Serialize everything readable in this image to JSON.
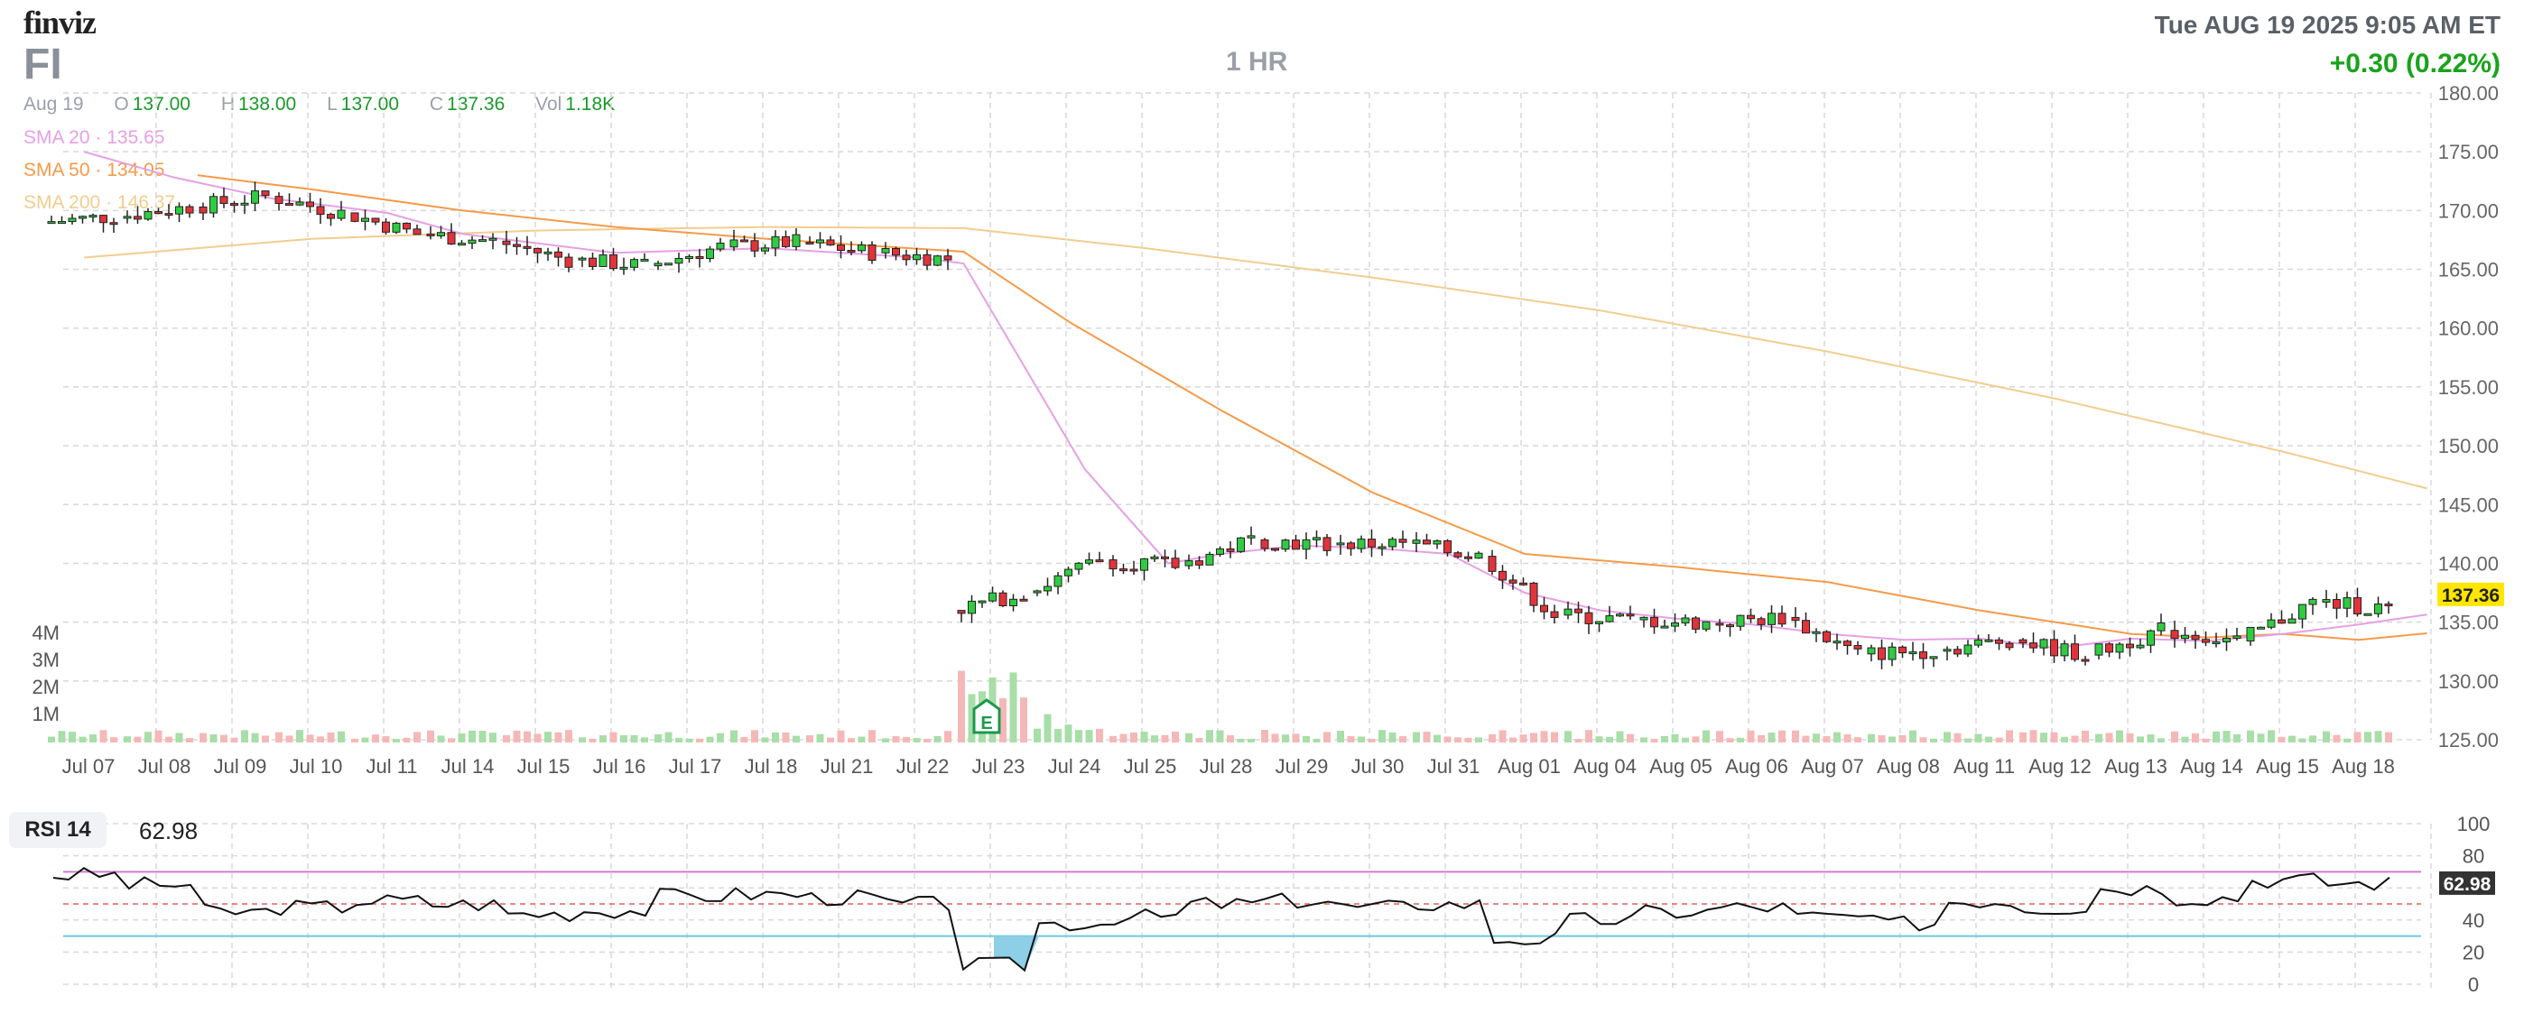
{
  "header": {
    "logo": "finviz",
    "ticker": "FI",
    "timeframe": "1 HR",
    "datetime": "Tue AUG 19 2025 9:05 AM ET",
    "change": "+0.30 (0.22%)"
  },
  "ohlc": {
    "date": "Aug 19",
    "o_label": "O",
    "o": "137.00",
    "h_label": "H",
    "h": "138.00",
    "l_label": "L",
    "l": "137.00",
    "c_label": "C",
    "c": "137.36",
    "vol_label": "Vol",
    "vol": "1.18K"
  },
  "indicators": {
    "sma20": {
      "label": "SMA 20",
      "value": "135.65",
      "color": "#e6a0e6"
    },
    "sma50": {
      "label": "SMA 50",
      "value": "134.05",
      "color": "#f59a4a"
    },
    "sma200": {
      "label": "SMA 200",
      "value": "146.37",
      "color": "#f2cd8f"
    }
  },
  "earnings_marker": {
    "label": "E",
    "date": "Jul 23"
  },
  "rsi": {
    "label": "RSI 14",
    "value": "62.98"
  },
  "colors": {
    "up": "#2ecc40",
    "down": "#e0343a",
    "vol_up": "#a8dea8",
    "vol_down": "#f5b8b8",
    "last_price_bg": "#ffe600",
    "rsi_line": "#111111",
    "rsi_overbought": "#d27ad2",
    "rsi_oversold": "#6cc8e0",
    "rsi_fill": "#8ccfe6",
    "grid": "#d8d8d8"
  },
  "chart_data": {
    "type": "candlestick",
    "x_labels": [
      "Jul 07",
      "Jul 08",
      "Jul 09",
      "Jul 10",
      "Jul 11",
      "Jul 14",
      "Jul 15",
      "Jul 16",
      "Jul 17",
      "Jul 18",
      "Jul 21",
      "Jul 22",
      "Jul 23",
      "Jul 24",
      "Jul 25",
      "Jul 28",
      "Jul 29",
      "Jul 30",
      "Jul 31",
      "Aug 01",
      "Aug 04",
      "Aug 05",
      "Aug 06",
      "Aug 07",
      "Aug 08",
      "Aug 11",
      "Aug 12",
      "Aug 13",
      "Aug 14",
      "Aug 15",
      "Aug 18"
    ],
    "price_ticks": [
      "180.00",
      "175.00",
      "170.00",
      "165.00",
      "160.00",
      "155.00",
      "150.00",
      "145.00",
      "140.00",
      "135.00",
      "130.00",
      "125.00"
    ],
    "ylim": [
      125,
      180
    ],
    "volume_ticks": [
      "4M",
      "3M",
      "2M",
      "1M"
    ],
    "last_price": "137.36",
    "daily_closes": [
      169.5,
      170.3,
      171.2,
      169.8,
      168.0,
      167.4,
      165.8,
      165.3,
      166.9,
      167.3,
      166.4,
      165.9,
      137.5,
      140.3,
      139.8,
      142.0,
      141.6,
      141.7,
      140.6,
      135.6,
      135.2,
      134.9,
      135.4,
      132.3,
      132.6,
      133.5,
      132.2,
      134.3,
      133.4,
      136.7,
      136.1
    ],
    "sma20": [
      {
        "day": 0,
        "v": 175.0
      },
      {
        "day": 1.2,
        "v": 172.8
      },
      {
        "day": 2.5,
        "v": 171.0
      },
      {
        "day": 4,
        "v": 169.8
      },
      {
        "day": 5,
        "v": 168.0
      },
      {
        "day": 7,
        "v": 166.4
      },
      {
        "day": 9,
        "v": 166.8
      },
      {
        "day": 11,
        "v": 166.0
      },
      {
        "day": 11.6,
        "v": 165.5
      },
      {
        "day": 13.2,
        "v": 148.0
      },
      {
        "day": 14.3,
        "v": 140.0
      },
      {
        "day": 15,
        "v": 140.8
      },
      {
        "day": 16,
        "v": 141.5
      },
      {
        "day": 17,
        "v": 141.3
      },
      {
        "day": 18,
        "v": 140.8
      },
      {
        "day": 19,
        "v": 137.5
      },
      {
        "day": 20,
        "v": 136.0
      },
      {
        "day": 21,
        "v": 135.3
      },
      {
        "day": 22,
        "v": 134.8
      },
      {
        "day": 23,
        "v": 134.0
      },
      {
        "day": 24,
        "v": 133.5
      },
      {
        "day": 25,
        "v": 133.6
      },
      {
        "day": 26,
        "v": 132.8
      },
      {
        "day": 27,
        "v": 133.6
      },
      {
        "day": 28,
        "v": 133.4
      },
      {
        "day": 29,
        "v": 134.0
      },
      {
        "day": 30,
        "v": 134.8
      },
      {
        "day": 30.9,
        "v": 135.65
      }
    ],
    "sma50": [
      {
        "day": 1.5,
        "v": 173.0
      },
      {
        "day": 3,
        "v": 171.8
      },
      {
        "day": 5,
        "v": 170.0
      },
      {
        "day": 7,
        "v": 168.6
      },
      {
        "day": 9,
        "v": 167.6
      },
      {
        "day": 11.6,
        "v": 166.5
      },
      {
        "day": 13,
        "v": 160.5
      },
      {
        "day": 15,
        "v": 153.0
      },
      {
        "day": 17,
        "v": 146.0
      },
      {
        "day": 19,
        "v": 140.8
      },
      {
        "day": 21,
        "v": 139.7
      },
      {
        "day": 23,
        "v": 138.4
      },
      {
        "day": 25,
        "v": 136.0
      },
      {
        "day": 27,
        "v": 134.0
      },
      {
        "day": 28,
        "v": 133.7
      },
      {
        "day": 29,
        "v": 134.0
      },
      {
        "day": 30,
        "v": 133.5
      },
      {
        "day": 30.9,
        "v": 134.05
      }
    ],
    "sma200": [
      {
        "day": 0,
        "v": 166.0
      },
      {
        "day": 3,
        "v": 167.6
      },
      {
        "day": 6,
        "v": 168.3
      },
      {
        "day": 9,
        "v": 168.6
      },
      {
        "day": 11.6,
        "v": 168.5
      },
      {
        "day": 14,
        "v": 166.8
      },
      {
        "day": 17,
        "v": 164.3
      },
      {
        "day": 20,
        "v": 161.5
      },
      {
        "day": 23,
        "v": 158.0
      },
      {
        "day": 26,
        "v": 154.0
      },
      {
        "day": 29,
        "v": 149.5
      },
      {
        "day": 30.9,
        "v": 146.37
      }
    ],
    "rsi_ticks": [
      "100",
      "80",
      "60",
      "40",
      "20",
      "0"
    ],
    "rsi_last": "62.98",
    "rsi_levels": [
      70,
      30
    ],
    "rsi_daily": [
      68,
      62,
      45,
      48,
      52,
      50,
      44,
      46,
      55,
      56,
      54,
      50,
      12,
      38,
      42,
      50,
      52,
      48,
      50,
      28,
      40,
      45,
      48,
      42,
      38,
      52,
      48,
      60,
      54,
      65,
      63
    ]
  }
}
